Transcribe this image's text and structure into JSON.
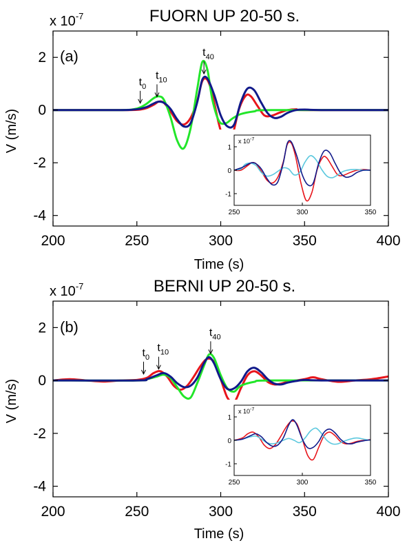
{
  "panels": [
    {
      "title": "FUORN UP 20-50 s.",
      "label": "(a)",
      "scale": "x 10",
      "scale_exp": "-7",
      "xlabel": "Time (s)",
      "ylabel": "V (m/s)",
      "markers": [
        {
          "name": "t",
          "sub": "0",
          "time": 252
        },
        {
          "name": "t",
          "sub": "10",
          "time": 262
        },
        {
          "name": "t",
          "sub": "40",
          "time": 290
        }
      ],
      "inset": {
        "scale": "x 10",
        "scale_exp": "-7"
      }
    },
    {
      "title": "BERNI UP 20-50 s.",
      "label": "(b)",
      "scale": "x 10",
      "scale_exp": "-7",
      "xlabel": "Time (s)",
      "ylabel": "V (m/s)",
      "markers": [
        {
          "name": "t",
          "sub": "0",
          "time": 254
        },
        {
          "name": "t",
          "sub": "10",
          "time": 263
        },
        {
          "name": "t",
          "sub": "40",
          "time": 294
        }
      ],
      "inset": {
        "scale": "x 10",
        "scale_exp": "-7"
      }
    }
  ],
  "colors": {
    "red": "#e8151b",
    "green": "#22e62a",
    "navy": "#111a8a",
    "cyan": "#5bc8de"
  },
  "chart_data": [
    {
      "type": "line",
      "title": "FUORN UP 20-50 s.",
      "xlabel": "Time (s)",
      "ylabel": "V (m/s)",
      "xlim": [
        200,
        400
      ],
      "ylim": [
        -4.4,
        3.0
      ],
      "y_scale_factor": "x 10^-7",
      "xticks": [
        200,
        250,
        300,
        350,
        400
      ],
      "yticks": [
        -4,
        -2,
        0,
        2
      ],
      "grid": false,
      "series": [
        {
          "color": "red",
          "x": [
            200,
            230,
            245,
            252,
            256,
            260,
            263,
            266,
            270,
            274,
            278,
            282,
            286,
            289,
            292,
            295,
            299,
            303,
            307,
            311,
            315,
            318,
            322,
            326,
            330,
            335,
            340,
            345,
            350,
            400
          ],
          "values": [
            0,
            0,
            0,
            0.02,
            0.08,
            0.2,
            0.32,
            0.28,
            -0.05,
            -0.42,
            -0.55,
            -0.3,
            0.35,
            1.1,
            1.15,
            0.6,
            -0.55,
            -1.3,
            -0.95,
            0.05,
            0.55,
            0.52,
            0.15,
            -0.2,
            -0.22,
            -0.1,
            0,
            0.03,
            0,
            0
          ]
        },
        {
          "color": "green",
          "x": [
            200,
            240,
            248,
            252,
            256,
            260,
            263,
            266,
            270,
            274,
            278,
            282,
            286,
            289,
            292,
            295,
            299,
            303,
            307,
            312,
            320,
            330,
            400
          ],
          "values": [
            0,
            0,
            0.03,
            0.1,
            0.25,
            0.45,
            0.52,
            0.4,
            -0.25,
            -1.15,
            -1.45,
            -0.7,
            0.8,
            1.82,
            1.55,
            0.4,
            -0.42,
            -0.5,
            -0.32,
            -0.15,
            -0.05,
            0,
            0
          ]
        },
        {
          "color": "navy",
          "x": [
            200,
            240,
            248,
            252,
            256,
            260,
            263,
            266,
            270,
            274,
            278,
            282,
            286,
            289,
            292,
            296,
            300,
            304,
            308,
            312,
            316,
            320,
            324,
            328,
            332,
            336,
            340,
            345,
            350,
            360,
            400
          ],
          "values": [
            0,
            0,
            0.02,
            0.05,
            0.12,
            0.25,
            0.32,
            0.28,
            0.05,
            -0.35,
            -0.62,
            -0.5,
            0.3,
            1.15,
            1.2,
            0.6,
            -0.2,
            -0.62,
            -0.55,
            0.3,
            0.82,
            0.75,
            0.3,
            -0.12,
            -0.3,
            -0.25,
            -0.1,
            0,
            0.02,
            0,
            0
          ]
        }
      ],
      "inset": {
        "xlim": [
          250,
          350
        ],
        "ylim": [
          -1.5,
          1.5
        ],
        "xticks": [
          250,
          300,
          350
        ],
        "yticks": [
          -1,
          0,
          1
        ],
        "series": [
          {
            "color": "red",
            "x": [
              250,
              255,
              260,
              263,
              266,
              270,
              274,
              278,
              282,
              286,
              289,
              292,
              295,
              299,
              303,
              307,
              311,
              315,
              318,
              322,
              326,
              330,
              335,
              340,
              345,
              350
            ],
            "values": [
              0,
              0,
              0.2,
              0.32,
              0.28,
              -0.05,
              -0.42,
              -0.55,
              -0.3,
              0.35,
              1.1,
              1.15,
              0.6,
              -0.55,
              -1.3,
              -0.95,
              0.05,
              0.55,
              0.52,
              0.15,
              -0.2,
              -0.22,
              -0.1,
              0,
              0.03,
              0
            ]
          },
          {
            "color": "cyan",
            "x": [
              250,
              255,
              258,
              262,
              266,
              270,
              274,
              278,
              282,
              286,
              290,
              294,
              298,
              302,
              306,
              310,
              314,
              318,
              322,
              326,
              330,
              335,
              340,
              345,
              350
            ],
            "values": [
              0,
              0.05,
              0.25,
              0.3,
              0.2,
              -0.1,
              -0.25,
              -0.2,
              -0.05,
              0.1,
              0.05,
              -0.2,
              -0.1,
              0.35,
              0.62,
              0.45,
              0.05,
              -0.25,
              -0.32,
              -0.2,
              -0.05,
              0.02,
              0.03,
              0,
              0
            ]
          },
          {
            "color": "navy",
            "x": [
              250,
              256,
              260,
              263,
              266,
              270,
              274,
              278,
              282,
              286,
              289,
              292,
              296,
              300,
              304,
              308,
              312,
              316,
              320,
              324,
              328,
              332,
              336,
              340,
              345,
              350
            ],
            "values": [
              0,
              0.12,
              0.25,
              0.32,
              0.28,
              0.05,
              -0.35,
              -0.62,
              -0.5,
              0.3,
              1.15,
              1.2,
              0.6,
              -0.2,
              -0.62,
              -0.55,
              0.3,
              0.82,
              0.75,
              0.3,
              -0.12,
              -0.3,
              -0.25,
              -0.1,
              0,
              0
            ]
          }
        ]
      }
    },
    {
      "type": "line",
      "title": "BERNI UP 20-50 s.",
      "xlabel": "Time (s)",
      "ylabel": "V (m/s)",
      "xlim": [
        200,
        400
      ],
      "ylim": [
        -4.4,
        3.0
      ],
      "y_scale_factor": "x 10^-7",
      "xticks": [
        200,
        250,
        300,
        350,
        400
      ],
      "yticks": [
        -4,
        -2,
        0,
        2
      ],
      "grid": false,
      "series": [
        {
          "color": "red",
          "x": [
            200,
            210,
            220,
            230,
            240,
            250,
            256,
            260,
            264,
            268,
            272,
            276,
            280,
            284,
            288,
            292,
            296,
            300,
            304,
            308,
            312,
            316,
            320,
            324,
            328,
            332,
            336,
            340,
            350,
            355,
            360,
            370,
            380,
            390,
            400
          ],
          "values": [
            0,
            0.05,
            0,
            -0.04,
            0,
            0.02,
            0.1,
            0.28,
            0.35,
            0.15,
            -0.2,
            -0.35,
            -0.2,
            0.15,
            0.55,
            0.82,
            0.7,
            0.05,
            -0.65,
            -0.82,
            -0.3,
            0.2,
            0.35,
            0.2,
            -0.05,
            -0.15,
            -0.12,
            -0.05,
            0.05,
            0.12,
            0.05,
            -0.05,
            0,
            0.05,
            0.15
          ]
        },
        {
          "color": "green",
          "x": [
            200,
            250,
            256,
            262,
            266,
            270,
            274,
            278,
            282,
            286,
            290,
            293,
            296,
            300,
            304,
            308,
            312,
            320,
            330,
            400
          ],
          "values": [
            0,
            0,
            0.05,
            0.15,
            0.22,
            0.1,
            -0.25,
            -0.6,
            -0.65,
            -0.1,
            0.55,
            0.98,
            0.85,
            0.2,
            -0.3,
            -0.42,
            -0.2,
            -0.05,
            0,
            0
          ]
        },
        {
          "color": "navy",
          "x": [
            200,
            250,
            256,
            262,
            266,
            270,
            274,
            278,
            282,
            286,
            290,
            293,
            296,
            300,
            304,
            308,
            312,
            316,
            320,
            324,
            328,
            332,
            336,
            340,
            345,
            350,
            360,
            400
          ],
          "values": [
            0,
            0,
            0.05,
            0.2,
            0.28,
            0.15,
            -0.1,
            -0.25,
            -0.2,
            0.1,
            0.65,
            0.88,
            0.65,
            0.05,
            -0.32,
            -0.3,
            -0.05,
            0.35,
            0.48,
            0.32,
            0.05,
            -0.12,
            -0.15,
            -0.08,
            -0.02,
            0.02,
            0,
            0
          ]
        }
      ],
      "inset": {
        "xlim": [
          250,
          350
        ],
        "ylim": [
          -1.5,
          1.5
        ],
        "xticks": [
          250,
          300,
          350
        ],
        "yticks": [
          -1,
          0,
          1
        ],
        "series": [
          {
            "color": "red",
            "x": [
              250,
              256,
              260,
              264,
              268,
              272,
              276,
              280,
              284,
              288,
              292,
              296,
              300,
              304,
              308,
              312,
              316,
              320,
              324,
              328,
              332,
              336,
              340,
              345,
              350
            ],
            "values": [
              0,
              0.1,
              0.28,
              0.35,
              0.15,
              -0.2,
              -0.35,
              -0.2,
              0.15,
              0.55,
              0.82,
              0.7,
              0.05,
              -0.65,
              -0.82,
              -0.3,
              0.2,
              0.35,
              0.2,
              -0.05,
              -0.15,
              -0.12,
              -0.05,
              0,
              0.03
            ]
          },
          {
            "color": "cyan",
            "x": [
              250,
              256,
              262,
              266,
              270,
              274,
              278,
              282,
              286,
              290,
              294,
              298,
              302,
              306,
              310,
              314,
              318,
              322,
              326,
              330,
              335,
              340,
              345,
              350
            ],
            "values": [
              0,
              0.05,
              0.15,
              0.18,
              0.05,
              -0.1,
              -0.15,
              -0.1,
              0,
              0.08,
              0,
              -0.1,
              0.1,
              0.4,
              0.52,
              0.3,
              0,
              -0.15,
              -0.15,
              -0.05,
              0.05,
              0.1,
              0.05,
              0
            ]
          },
          {
            "color": "navy",
            "x": [
              250,
              256,
              262,
              266,
              270,
              274,
              278,
              282,
              286,
              290,
              293,
              296,
              300,
              304,
              308,
              312,
              316,
              320,
              324,
              328,
              332,
              336,
              340,
              345,
              350
            ],
            "values": [
              0,
              0.05,
              0.2,
              0.28,
              0.15,
              -0.1,
              -0.25,
              -0.2,
              0.1,
              0.65,
              0.88,
              0.65,
              0.05,
              -0.32,
              -0.3,
              -0.05,
              0.35,
              0.48,
              0.32,
              0.05,
              -0.12,
              -0.15,
              -0.08,
              -0.02,
              0.02
            ]
          }
        ]
      }
    }
  ]
}
